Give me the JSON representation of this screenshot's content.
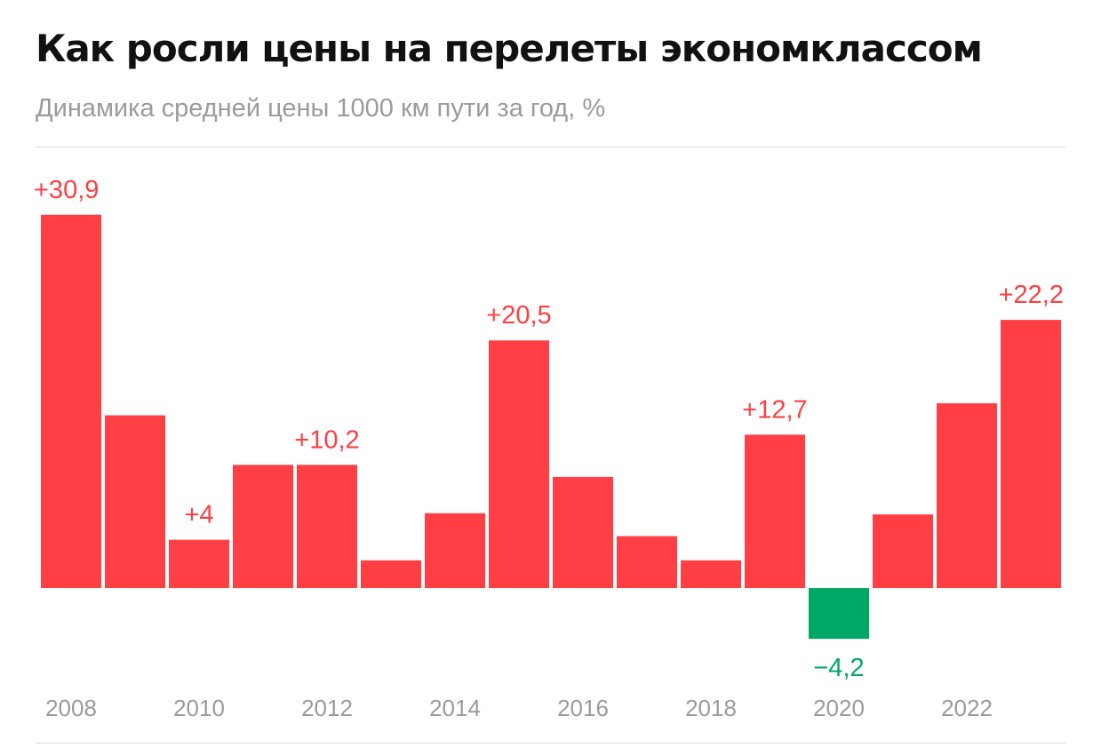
{
  "title": "Как росли цены на перелеты экономклассом",
  "subtitle": "Динамика средней цены 1000 км пути за год, %",
  "colors": {
    "positive": "#ff3f44",
    "negative": "#00a866",
    "tick_label": "#9b9b9b"
  },
  "chart_data": {
    "type": "bar",
    "title": "Как росли цены на перелеты экономклассом",
    "subtitle": "Динамика средней цены 1000 км пути за год, %",
    "categories": [
      "2008",
      "2009",
      "2010",
      "2011",
      "2012",
      "2013",
      "2014",
      "2015",
      "2016",
      "2017",
      "2018",
      "2019",
      "2020",
      "2021",
      "2022",
      "2023"
    ],
    "values": [
      30.9,
      14.3,
      4,
      10.2,
      10.2,
      2.3,
      6.2,
      20.5,
      9.2,
      4.3,
      2.3,
      12.7,
      -4.2,
      6.1,
      15.3,
      22.2
    ],
    "data_labels": {
      "2008": "+30,9",
      "2010": "+4",
      "2012": "+10,2",
      "2015": "+20,5",
      "2019": "+12,7",
      "2020": "−4,2",
      "2023": "+22,2"
    },
    "x_tick_labels": [
      "2008",
      "2010",
      "2012",
      "2014",
      "2016",
      "2018",
      "2020",
      "2022"
    ],
    "ylim": [
      -4.2,
      30.9
    ],
    "grid": false,
    "legend": "none"
  }
}
